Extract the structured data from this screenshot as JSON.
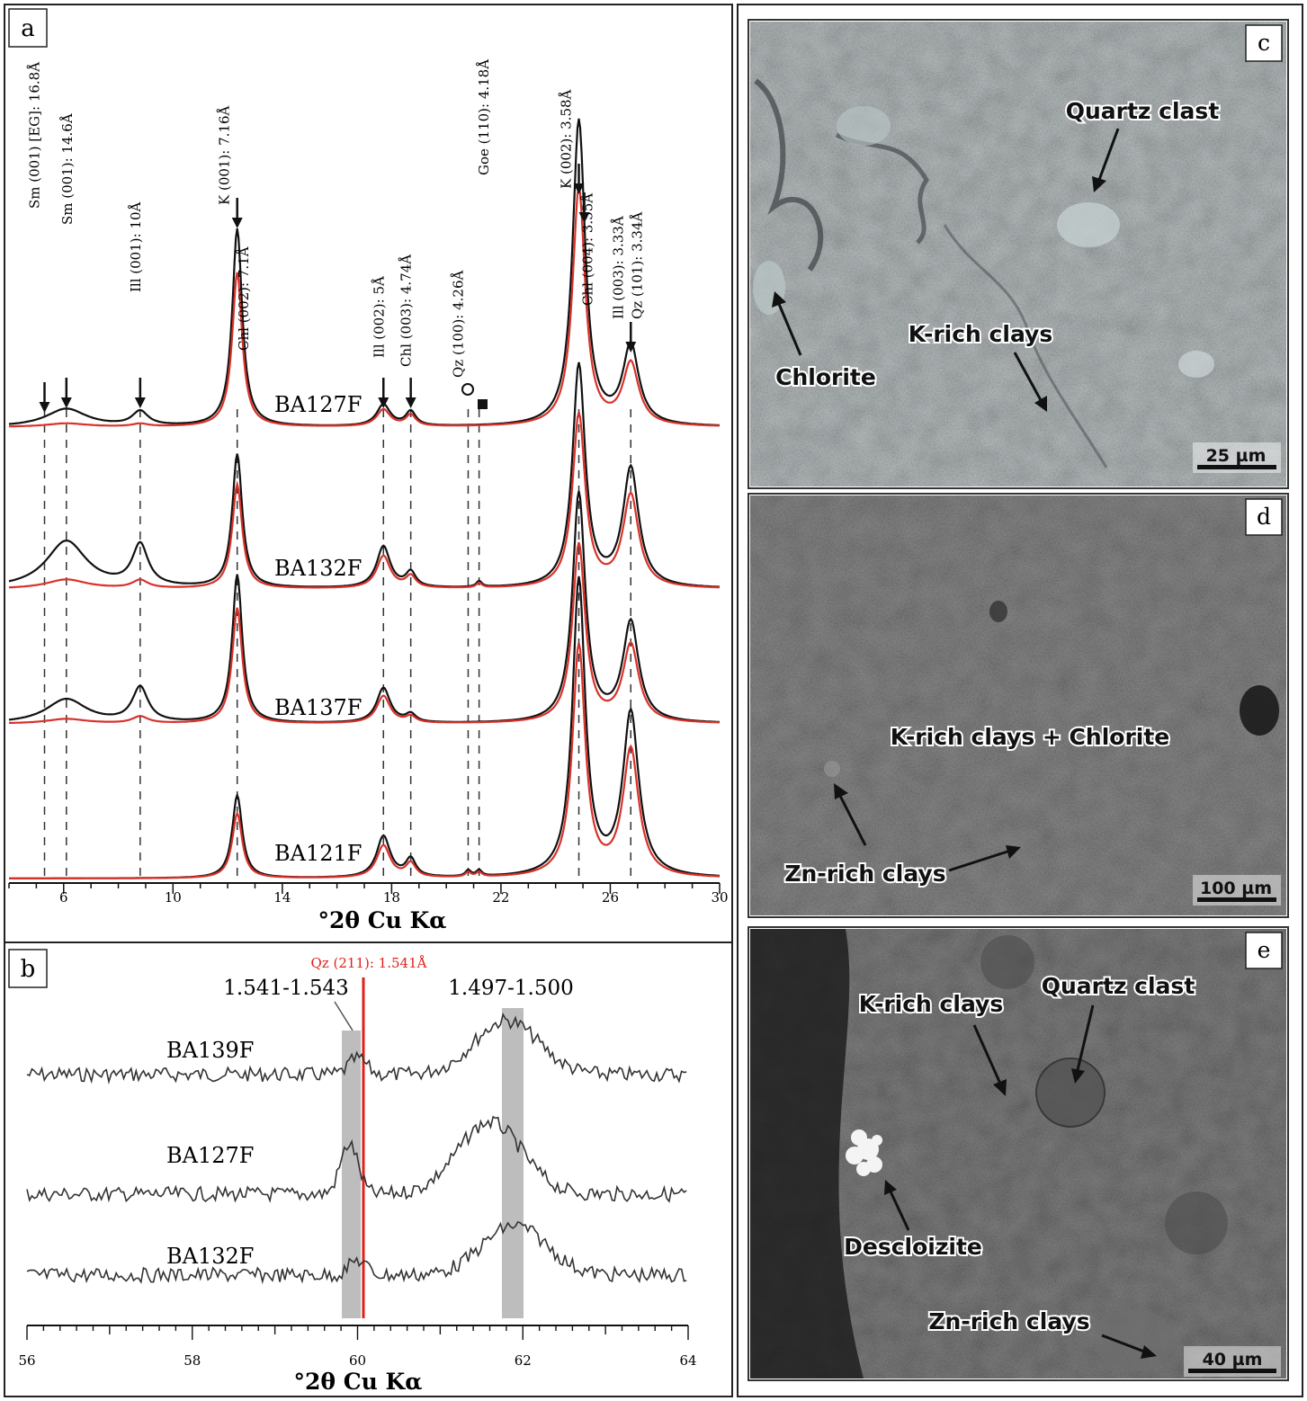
{
  "panels": {
    "a": {
      "letter": "a",
      "xlabel": "°2θ Cu Kα",
      "x_ticks": [
        "6",
        "10",
        "14",
        "18",
        "22",
        "26",
        "30"
      ],
      "peak_labels": [
        {
          "text": "Sm (001) [EG]: 16.8Å",
          "x": 5.3
        },
        {
          "text": "Sm (001): 14.6Å",
          "x": 6.1
        },
        {
          "text": "Ill (001): 10Å",
          "x": 8.8
        },
        {
          "text": "K (001): 7.16Å",
          "x": 12.35
        },
        {
          "text": "Chl (002): 7.1Å",
          "x": 12.45
        },
        {
          "text": "Ill (002): 5Å",
          "x": 17.7
        },
        {
          "text": "Chl (003): 4.74Å",
          "x": 18.7
        },
        {
          "text": "Qz (100): 4.26Å",
          "x": 20.8
        },
        {
          "text": "Goe (110): 4.18Å",
          "x": 21.25
        },
        {
          "text": "K (002): 3.58Å",
          "x": 24.85
        },
        {
          "text": "Chl (004): 3.55Å",
          "x": 25.05
        },
        {
          "text": "Ill (003): 3.33Å",
          "x": 26.75
        },
        {
          "text": "Qz (101): 3.34Å",
          "x": 26.85
        }
      ],
      "samples": [
        "BA127F",
        "BA132F",
        "BA137F",
        "BA121F"
      ]
    },
    "b": {
      "letter": "b",
      "xlabel": "°2θ Cu Kα",
      "x_ticks": [
        "56",
        "58",
        "60",
        "62",
        "64"
      ],
      "ref_line_label": "Qz (211): 1.541Å",
      "band1_label": "1.541-1.543",
      "band2_label": "1.497-1.500",
      "samples": [
        "BA139F",
        "BA127F",
        "BA132F"
      ]
    },
    "c": {
      "letter": "c",
      "labels": [
        "Quartz clast",
        "K-rich clays",
        "Chlorite"
      ],
      "scale": "25 µm"
    },
    "d": {
      "letter": "d",
      "labels": [
        "K-rich clays + Chlorite",
        "Zn-rich clays"
      ],
      "scale": "100 µm"
    },
    "e": {
      "letter": "e",
      "labels": [
        "K-rich clays",
        "Quartz clast",
        "Descloizite",
        "Zn-rich clays"
      ],
      "scale": "40 µm"
    }
  },
  "chart_data": [
    {
      "type": "line",
      "title": "",
      "xlabel": "°2θ Cu Kα",
      "ylabel": "",
      "xlim": [
        4,
        30
      ],
      "grid": false,
      "series": [
        {
          "name": "BA127F",
          "peaks_2theta": [
            6.1,
            8.8,
            12.35,
            17.7,
            18.7,
            24.85,
            26.75
          ],
          "relative_intensity": [
            0.05,
            0.04,
            0.55,
            0.06,
            0.04,
            0.85,
            0.22
          ]
        },
        {
          "name": "BA132F",
          "peaks_2theta": [
            6.1,
            8.8,
            12.35,
            17.7,
            18.7,
            21.2,
            24.85,
            26.75
          ],
          "relative_intensity": [
            0.16,
            0.14,
            0.45,
            0.14,
            0.05,
            0.02,
            0.75,
            0.4
          ]
        },
        {
          "name": "BA137F",
          "peaks_2theta": [
            6.1,
            8.8,
            12.35,
            17.7,
            18.7,
            24.85,
            26.75
          ],
          "relative_intensity": [
            0.09,
            0.13,
            0.55,
            0.13,
            0.03,
            0.85,
            0.37
          ]
        },
        {
          "name": "BA121F",
          "peaks_2theta": [
            12.35,
            17.7,
            18.7,
            20.8,
            21.2,
            24.85,
            26.75
          ],
          "relative_intensity": [
            0.28,
            0.14,
            0.06,
            0.02,
            0.02,
            1.0,
            0.55
          ]
        }
      ]
    },
    {
      "type": "line",
      "title": "",
      "xlabel": "°2θ Cu Kα",
      "ylabel": "",
      "xlim": [
        56,
        64
      ],
      "grid": false,
      "series": [
        {
          "name": "BA139F",
          "peaks_2theta": [
            60.0,
            61.8
          ],
          "relative_intensity": [
            0.3,
            1.0
          ]
        },
        {
          "name": "BA127F",
          "peaks_2theta": [
            59.9,
            61.6
          ],
          "relative_intensity": [
            0.7,
            1.0
          ]
        },
        {
          "name": "BA132F",
          "peaks_2theta": [
            60.0,
            61.9
          ],
          "relative_intensity": [
            0.3,
            1.0
          ]
        }
      ]
    }
  ]
}
